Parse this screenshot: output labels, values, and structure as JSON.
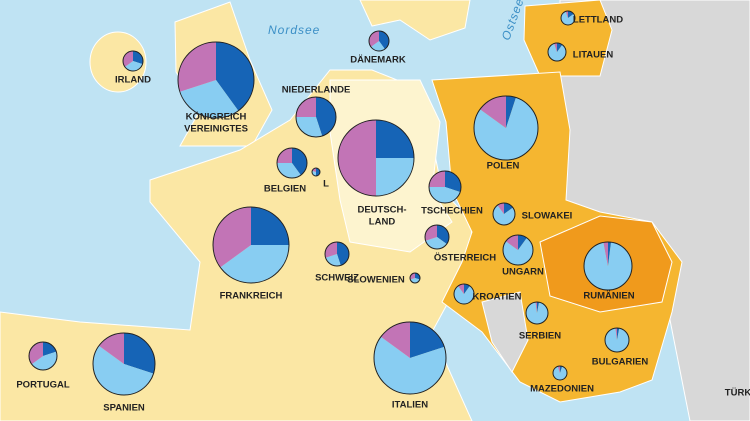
{
  "map": {
    "seas": [
      "Nordsee",
      "Ostsee"
    ],
    "edge_label": "TÜRK",
    "slice_colors": [
      "#1664b6",
      "#88cdf2",
      "#c274b6"
    ],
    "countries": [
      {
        "name_lines": [
          "IRLAND"
        ],
        "shares": [
          30,
          35,
          35
        ]
      },
      {
        "name_lines": [
          "KÖNIGREICH",
          "VEREINIGTES"
        ],
        "shares": [
          40,
          30,
          30
        ]
      },
      {
        "name_lines": [
          "DÄNEMARK"
        ],
        "shares": [
          40,
          25,
          35
        ]
      },
      {
        "name_lines": [
          "LETTLAND"
        ],
        "shares": [
          15,
          80,
          5
        ]
      },
      {
        "name_lines": [
          "LITAUEN"
        ],
        "shares": [
          10,
          85,
          5
        ]
      },
      {
        "name_lines": [
          "NIEDERLANDE"
        ],
        "shares": [
          45,
          30,
          25
        ]
      },
      {
        "name_lines": [
          "BELGIEN"
        ],
        "shares": [
          40,
          35,
          25
        ]
      },
      {
        "name_lines": [
          "L"
        ],
        "shares": [
          50,
          30,
          20
        ]
      },
      {
        "name_lines": [
          "DEUTSCH-",
          "LAND"
        ],
        "shares": [
          25,
          25,
          50
        ]
      },
      {
        "name_lines": [
          "POLEN"
        ],
        "shares": [
          5,
          80,
          15
        ]
      },
      {
        "name_lines": [
          "TSCHECHIEN"
        ],
        "shares": [
          30,
          45,
          25
        ]
      },
      {
        "name_lines": [
          "SLOWAKEI"
        ],
        "shares": [
          15,
          75,
          10
        ]
      },
      {
        "name_lines": [
          "ÖSTERREICH"
        ],
        "shares": [
          35,
          35,
          30
        ]
      },
      {
        "name_lines": [
          "UNGARN"
        ],
        "shares": [
          10,
          75,
          15
        ]
      },
      {
        "name_lines": [
          "RUMÄNIEN"
        ],
        "shares": [
          2,
          95,
          3
        ]
      },
      {
        "name_lines": [
          "SCHWEIZ"
        ],
        "shares": [
          45,
          25,
          30
        ]
      },
      {
        "name_lines": [
          "SLOWENIEN"
        ],
        "shares": [
          30,
          40,
          30
        ]
      },
      {
        "name_lines": [
          "KROATIEN"
        ],
        "shares": [
          10,
          80,
          10
        ]
      },
      {
        "name_lines": [
          "FRANKREICH"
        ],
        "shares": [
          25,
          40,
          35
        ]
      },
      {
        "name_lines": [
          "SERBIEN"
        ],
        "shares": [
          3,
          95,
          2
        ]
      },
      {
        "name_lines": [
          "BULGARIEN"
        ],
        "shares": [
          3,
          95,
          2
        ]
      },
      {
        "name_lines": [
          "MAZEDONIEN"
        ],
        "shares": [
          5,
          90,
          5
        ]
      },
      {
        "name_lines": [
          "PORTUGAL"
        ],
        "shares": [
          20,
          45,
          35
        ]
      },
      {
        "name_lines": [
          "SPANIEN"
        ],
        "shares": [
          30,
          55,
          15
        ]
      },
      {
        "name_lines": [
          "ITALIEN"
        ],
        "shares": [
          20,
          65,
          15
        ]
      }
    ]
  }
}
